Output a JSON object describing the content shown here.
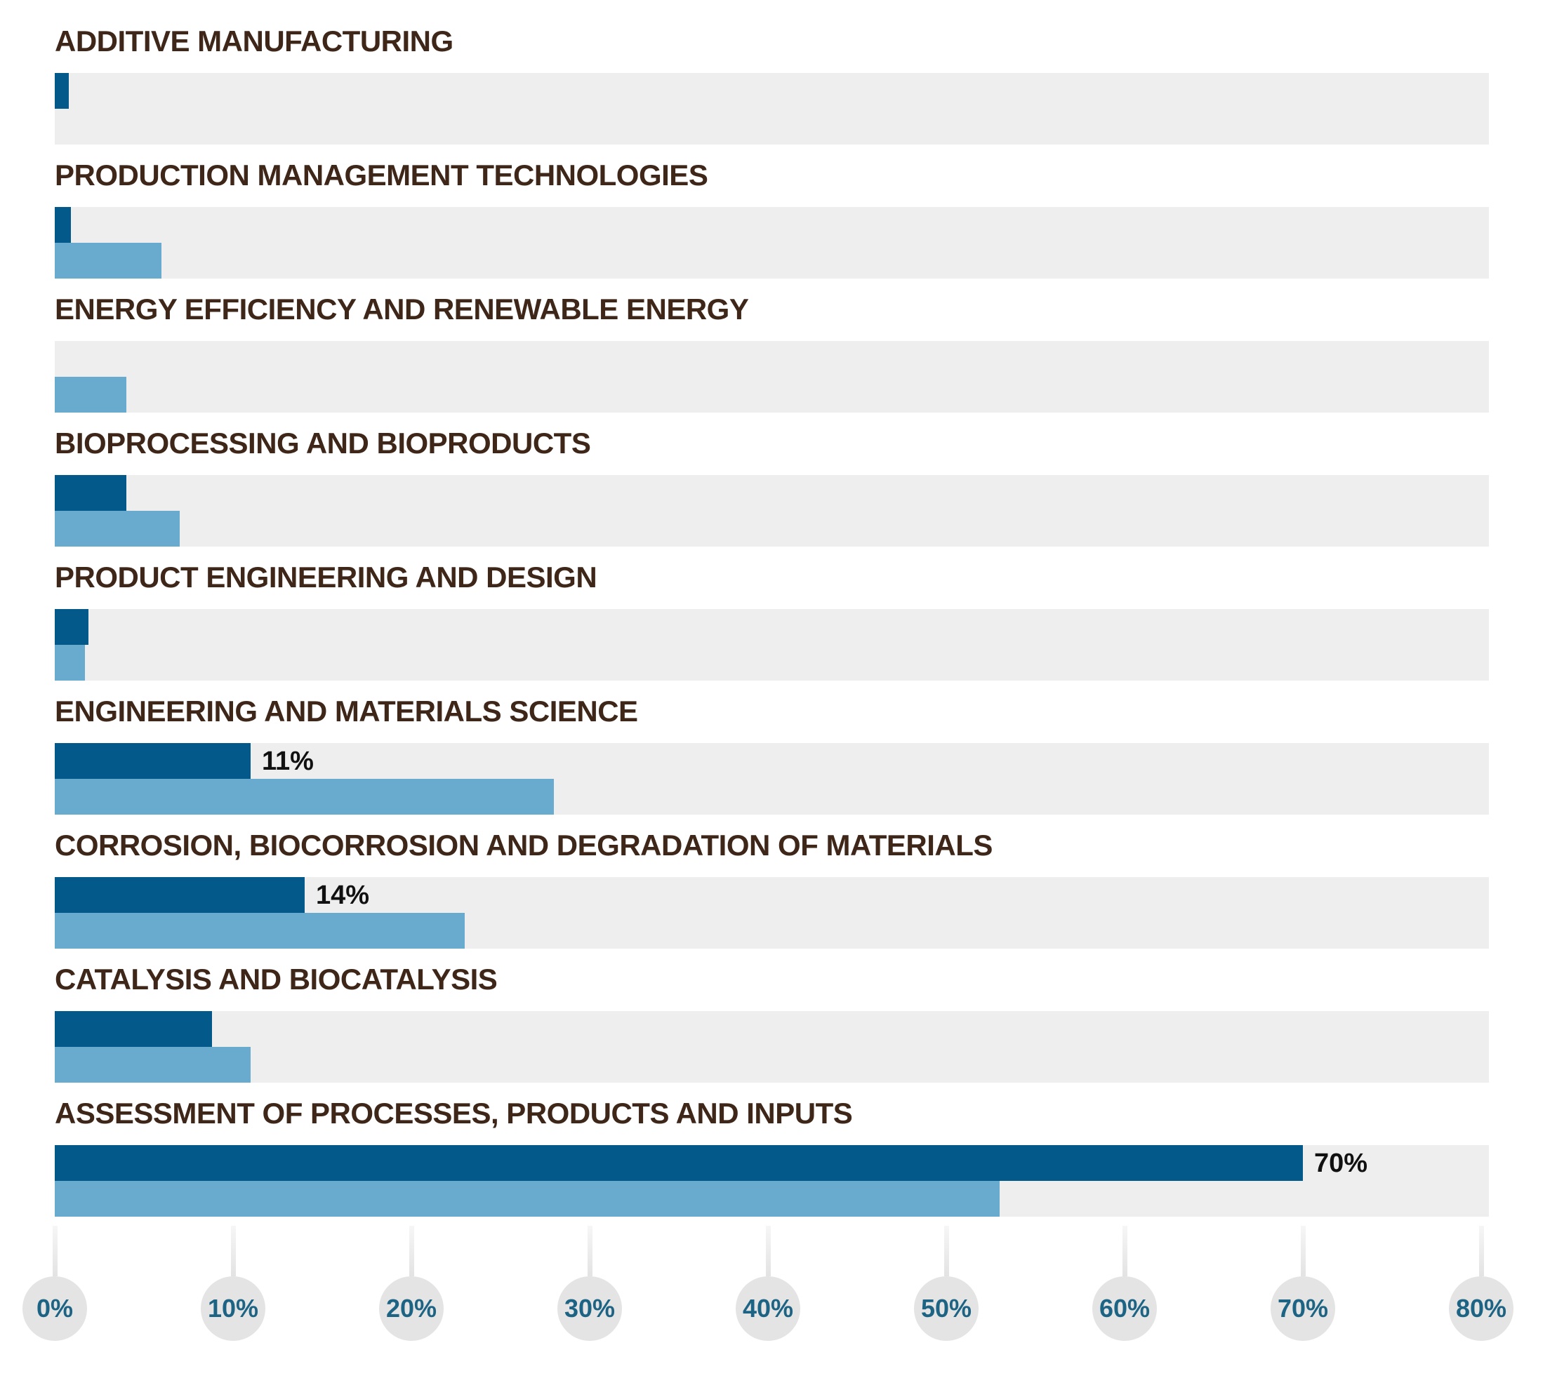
{
  "chart_data": {
    "type": "bar",
    "orientation": "horizontal",
    "categories": [
      "ADDITIVE MANUFACTURING",
      "PRODUCTION MANAGEMENT TECHNOLOGIES",
      "ENERGY EFFICIENCY AND RENEWABLE ENERGY",
      "BIOPROCESSING AND BIOPRODUCTS",
      "PRODUCT ENGINEERING AND DESIGN",
      "ENGINEERING AND MATERIALS SCIENCE",
      "CORROSION, BIOCORROSION AND DEGRADATION OF MATERIALS",
      "CATALYSIS AND BIOCATALYSIS",
      "ASSESSMENT OF PROCESSES, PRODUCTS AND INPUTS"
    ],
    "series": [
      {
        "name": "dark-blue-series",
        "color": "#03598a",
        "values": [
          0.8,
          0.9,
          0,
          4,
          1.9,
          11,
          14,
          8.8,
          70
        ]
      },
      {
        "name": "light-blue-series",
        "color": "#69aacf",
        "values": [
          0,
          6,
          4,
          7,
          1.7,
          28,
          23,
          11,
          53
        ]
      }
    ],
    "value_labels": [
      null,
      null,
      null,
      null,
      null,
      "11%",
      "14%",
      null,
      "70%"
    ],
    "xlim": [
      0,
      80.4
    ],
    "x_ticks": [
      0,
      10,
      20,
      30,
      40,
      50,
      60,
      70,
      80
    ],
    "x_tick_labels": [
      "0%",
      "10%",
      "20%",
      "30%",
      "40%",
      "50%",
      "60%",
      "70%",
      "80%"
    ],
    "grid": false,
    "legend": false
  },
  "theme": {
    "background": "#ffffff",
    "track_color": "#eeeeee",
    "dark_bar_color": "#03598a",
    "light_bar_color": "#69aacf",
    "category_title_color": "#3e2619",
    "value_label_color": "#111111",
    "tick_circle_color": "#e4e4e4",
    "tick_label_color": "#1d6484",
    "tick_line_color": "#e3e3e3"
  }
}
